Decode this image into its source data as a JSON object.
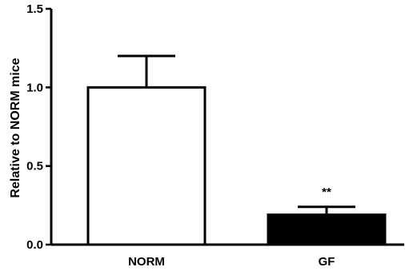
{
  "chart_data": {
    "type": "bar",
    "categories": [
      "NORM",
      "GF"
    ],
    "values": [
      1.0,
      0.19
    ],
    "error_upper": [
      0.2,
      0.05
    ],
    "bar_fills": [
      "#ffffff",
      "#000000"
    ],
    "annotations": [
      "",
      "**"
    ],
    "xlabel": "",
    "ylabel": "Relative to NORM mice",
    "ylim": [
      0,
      1.5
    ],
    "yticks": [
      0.0,
      0.5,
      1.0,
      1.5
    ],
    "ytick_labels": [
      "0.0",
      "0.5",
      "1.0",
      "1.5"
    ],
    "grid": false
  }
}
